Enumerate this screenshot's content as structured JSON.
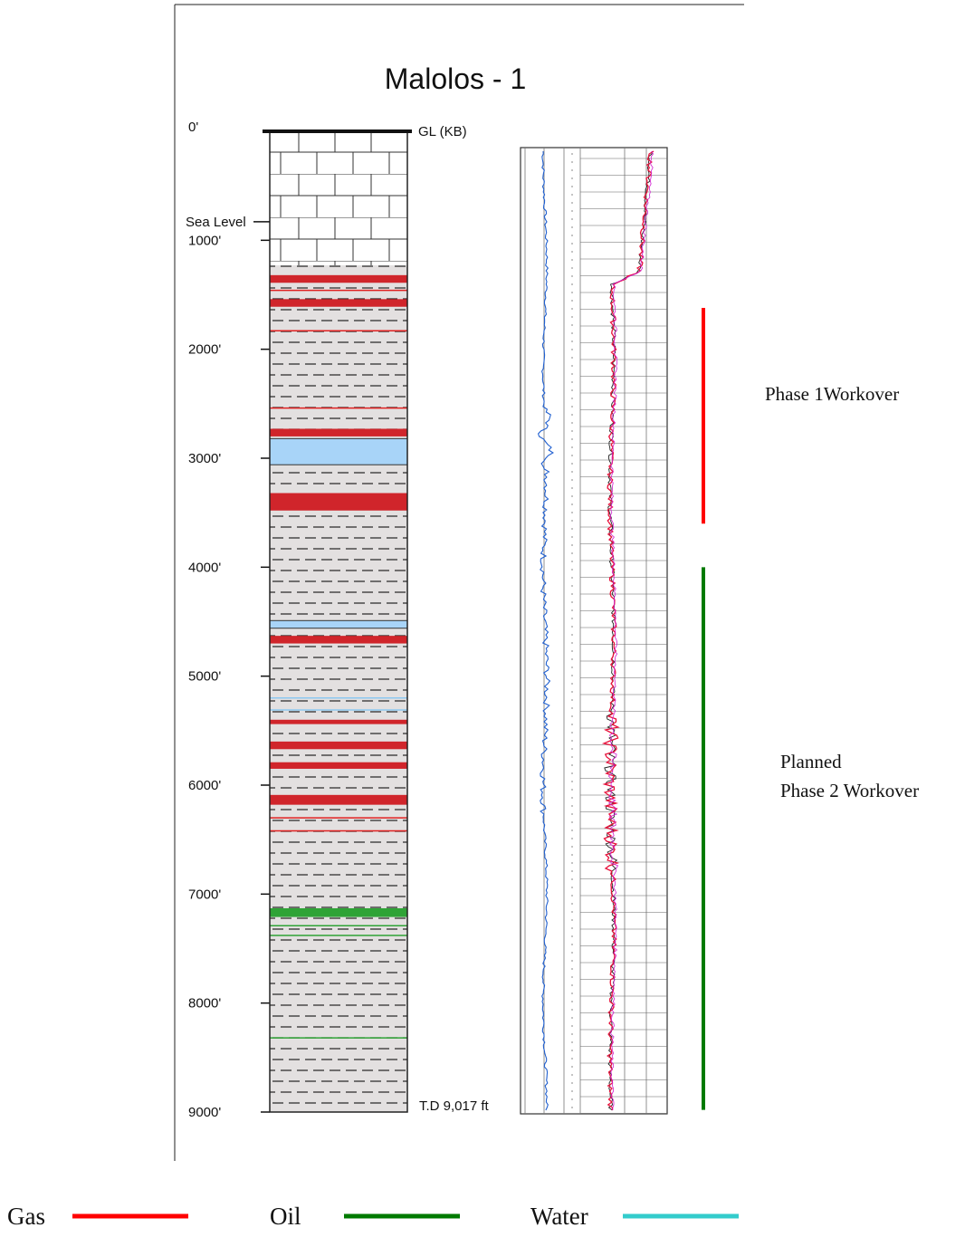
{
  "title": "Malolos - 1",
  "gl_label": "GL (KB)",
  "sea_level_label": "Sea Level",
  "td_label": "T.D 9,017 ft",
  "depth_ticks": [
    {
      "label": "0'",
      "depth": 0
    },
    {
      "label": "1000'",
      "depth": 1000
    },
    {
      "label": "2000'",
      "depth": 2000
    },
    {
      "label": "3000'",
      "depth": 3000
    },
    {
      "label": "4000'",
      "depth": 4000
    },
    {
      "label": "5000'",
      "depth": 5000
    },
    {
      "label": "6000'",
      "depth": 6000
    },
    {
      "label": "7000'",
      "depth": 7000
    },
    {
      "label": "8000'",
      "depth": 8000
    },
    {
      "label": "9000'",
      "depth": 9000
    }
  ],
  "sea_level_depth": 830,
  "limestone_interval": [
    0,
    1230
  ],
  "shale_interval": [
    1230,
    9000
  ],
  "zones": [
    {
      "fluid": "gas",
      "top": 1320,
      "bottom": 1390
    },
    {
      "fluid": "gas",
      "top": 1460,
      "bottom": 1472
    },
    {
      "fluid": "gas",
      "top": 1540,
      "bottom": 1610
    },
    {
      "fluid": "gas",
      "top": 1830,
      "bottom": 1842
    },
    {
      "fluid": "gas",
      "top": 2540,
      "bottom": 2552
    },
    {
      "fluid": "gas",
      "top": 2730,
      "bottom": 2800
    },
    {
      "fluid": "water",
      "top": 2820,
      "bottom": 3060
    },
    {
      "fluid": "gas",
      "top": 3320,
      "bottom": 3480
    },
    {
      "fluid": "water",
      "top": 4490,
      "bottom": 4560
    },
    {
      "fluid": "gas",
      "top": 4630,
      "bottom": 4700
    },
    {
      "fluid": "water",
      "top": 5200,
      "bottom": 5212
    },
    {
      "fluid": "water",
      "top": 5310,
      "bottom": 5322
    },
    {
      "fluid": "gas",
      "top": 5400,
      "bottom": 5440
    },
    {
      "fluid": "gas",
      "top": 5600,
      "bottom": 5670
    },
    {
      "fluid": "gas",
      "top": 5790,
      "bottom": 5850
    },
    {
      "fluid": "gas",
      "top": 6090,
      "bottom": 6180
    },
    {
      "fluid": "gas",
      "top": 6300,
      "bottom": 6312
    },
    {
      "fluid": "gas",
      "top": 6420,
      "bottom": 6432
    },
    {
      "fluid": "oil",
      "top": 7130,
      "bottom": 7210
    },
    {
      "fluid": "oil",
      "top": 7290,
      "bottom": 7300
    },
    {
      "fluid": "oil",
      "top": 7380,
      "bottom": 7390
    },
    {
      "fluid": "oil",
      "top": 8320,
      "bottom": 8332
    }
  ],
  "workovers": [
    {
      "label_lines": [
        "Phase 1Workover"
      ],
      "top": 1620,
      "bottom": 3600,
      "color": "#ff0000"
    },
    {
      "label_lines": [
        "Planned",
        "Phase 2 Workover"
      ],
      "top": 4000,
      "bottom": 8980,
      "color": "#007a00"
    }
  ],
  "legend": [
    {
      "label": "Gas",
      "color": "#ff0000"
    },
    {
      "label": "Oil",
      "color": "#007a00"
    },
    {
      "label": "Water",
      "color": "#33cccc"
    }
  ],
  "colors": {
    "shale": "#e3e0e0",
    "gas_zone": "#d0252b",
    "water_zone": "#a8d4f8",
    "oil_zone": "#2fa336",
    "log_blue": "#1f5fd0",
    "log_red": "#e8103a",
    "log_magenta": "#d020d0"
  }
}
